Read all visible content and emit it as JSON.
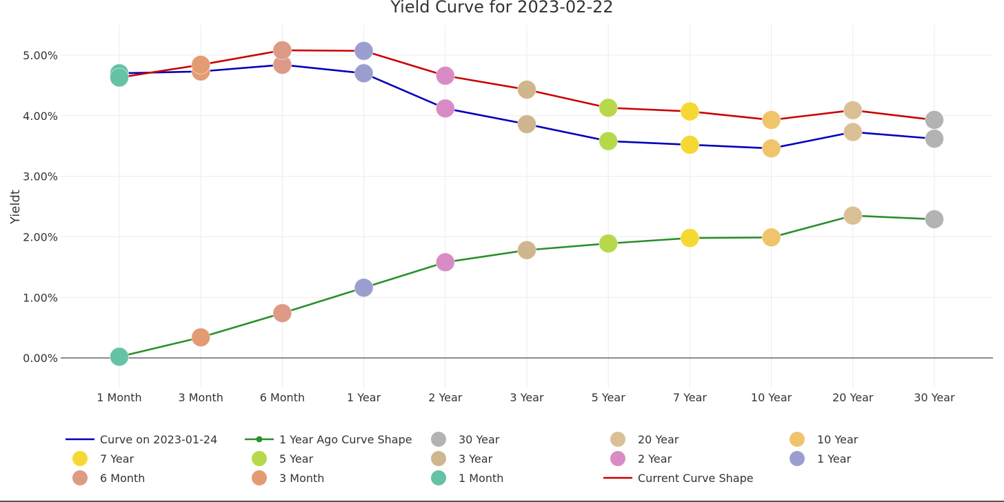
{
  "chart_data": {
    "type": "line",
    "title": "Yield Curve for 2023-02-22",
    "xlabel": "",
    "ylabel": "Yieldt",
    "categories": [
      "1 Month",
      "3 Month",
      "6 Month",
      "1 Year",
      "2 Year",
      "3 Year",
      "5 Year",
      "7 Year",
      "10 Year",
      "20 Year",
      "30 Year"
    ],
    "ylim": [
      -0.5,
      5.5
    ],
    "yticks": [
      0,
      1,
      2,
      3,
      4,
      5
    ],
    "ytick_labels": [
      "0.00%",
      "1.00%",
      "2.00%",
      "3.00%",
      "4.00%",
      "5.00%"
    ],
    "grid": true,
    "series": [
      {
        "name": "Current Curve Shape",
        "color": "#cc0000",
        "values": [
          4.63,
          4.84,
          5.08,
          5.07,
          4.66,
          4.43,
          4.13,
          4.07,
          3.93,
          4.09,
          3.93
        ]
      },
      {
        "name": "Curve on 2023-01-24",
        "color": "#0000bb",
        "values": [
          4.7,
          4.73,
          4.84,
          4.7,
          4.12,
          3.86,
          3.58,
          3.52,
          3.46,
          3.73,
          3.62
        ]
      },
      {
        "name": "1 Year Ago Curve Shape",
        "color": "#2a8f2a",
        "values": [
          0.02,
          0.34,
          0.74,
          1.16,
          1.58,
          1.78,
          1.89,
          1.98,
          1.99,
          2.35,
          2.29
        ]
      }
    ],
    "marker_colors": [
      "#66c2a5",
      "#e39b72",
      "#dd9a86",
      "#9a9fcf",
      "#d98bc6",
      "#d0b68c",
      "#b7d84a",
      "#f6d832",
      "#f0c46b",
      "#dbbf96",
      "#b3b3b3"
    ],
    "legend": {
      "placement": "bottom",
      "entries": [
        {
          "label": "Curve on 2023-01-24",
          "kind": "line",
          "color": "#0000bb"
        },
        {
          "label": "1 Year Ago Curve Shape",
          "kind": "line-marker",
          "color": "#2a8f2a"
        },
        {
          "label": "30 Year",
          "kind": "marker",
          "color": "#b3b3b3"
        },
        {
          "label": "20 Year",
          "kind": "marker",
          "color": "#dbbf96"
        },
        {
          "label": "10 Year",
          "kind": "marker",
          "color": "#f0c46b"
        },
        {
          "label": "7 Year",
          "kind": "marker",
          "color": "#f6d832"
        },
        {
          "label": "5 Year",
          "kind": "marker",
          "color": "#b7d84a"
        },
        {
          "label": "3 Year",
          "kind": "marker",
          "color": "#d0b68c"
        },
        {
          "label": "2 Year",
          "kind": "marker",
          "color": "#d98bc6"
        },
        {
          "label": "1 Year",
          "kind": "marker",
          "color": "#9a9fcf"
        },
        {
          "label": "6 Month",
          "kind": "marker",
          "color": "#dd9a86"
        },
        {
          "label": "3 Month",
          "kind": "marker",
          "color": "#e39b72"
        },
        {
          "label": "1 Month",
          "kind": "marker",
          "color": "#66c2a5"
        },
        {
          "label": "Current Curve Shape",
          "kind": "line",
          "color": "#cc0000"
        }
      ]
    }
  }
}
